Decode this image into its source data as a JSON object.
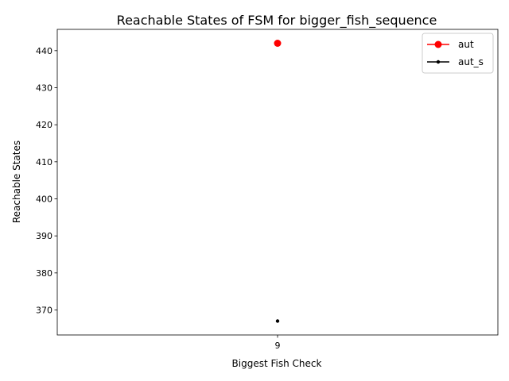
{
  "chart_data": {
    "type": "line",
    "title": "Reachable States of FSM for bigger_fish_sequence",
    "xlabel": "Biggest Fish Check",
    "ylabel": "Reachable States",
    "categories": [
      "9"
    ],
    "ylim": [
      363.25,
      445.75
    ],
    "yticks": [
      370,
      380,
      390,
      400,
      410,
      420,
      430,
      440
    ],
    "grid": false,
    "legend_position": "top-right",
    "series": [
      {
        "name": "aut",
        "values": [
          442
        ],
        "color": "#ff0000",
        "marker": "large-dot"
      },
      {
        "name": "aut_s",
        "values": [
          367
        ],
        "color": "#000000",
        "marker": "small-dot"
      }
    ]
  }
}
